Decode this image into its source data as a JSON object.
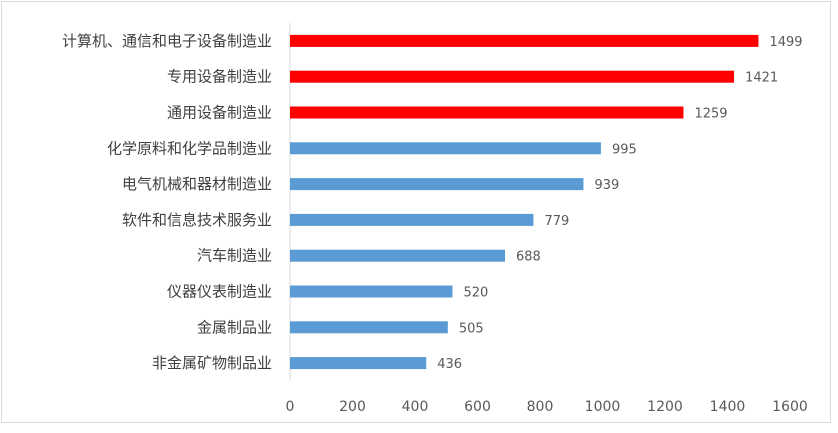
{
  "chart_data": {
    "type": "bar",
    "orientation": "horizontal",
    "categories": [
      "计算机、通信和电子设备制造业",
      "专用设备制造业",
      "通用设备制造业",
      "化学原料和化学品制造业",
      "电气机械和器材制造业",
      "软件和信息技术服务业",
      "汽车制造业",
      "仪器仪表制造业",
      "金属制品业",
      "非金属矿物制品业"
    ],
    "values": [
      1499,
      1421,
      1259,
      995,
      939,
      779,
      688,
      520,
      505,
      436
    ],
    "colors": [
      "#ff0000",
      "#ff0000",
      "#ff0000",
      "#5b9bd5",
      "#5b9bd5",
      "#5b9bd5",
      "#5b9bd5",
      "#5b9bd5",
      "#5b9bd5",
      "#5b9bd5"
    ],
    "xlim": [
      0,
      1600
    ],
    "xticks": [
      "0",
      "200",
      "400",
      "600",
      "800",
      "1000",
      "1200",
      "1400",
      "1600"
    ],
    "grid": false,
    "data_labels": true,
    "title": "",
    "xlabel": "",
    "ylabel": ""
  }
}
